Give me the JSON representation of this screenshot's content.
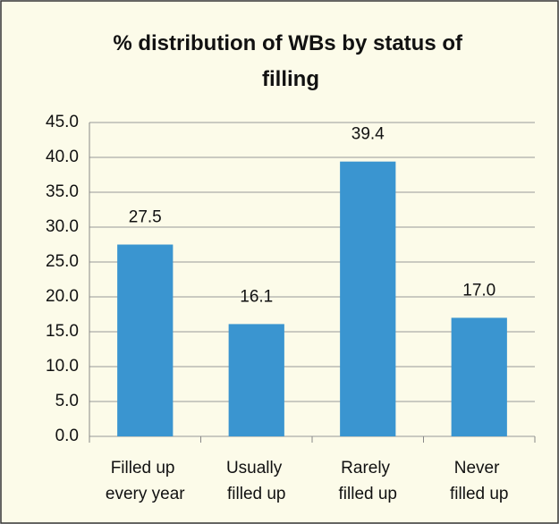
{
  "chart_data": {
    "type": "bar",
    "title": "% distribution of WBs by status of filling",
    "categories": [
      "Filled up every year",
      "Usually filled up",
      "Rarely filled up",
      "Never filled up"
    ],
    "values": [
      27.5,
      16.1,
      39.4,
      17.0
    ],
    "value_labels": [
      "27.5",
      "16.1",
      "39.4",
      "17.0"
    ],
    "color": "#3a95d0",
    "ylim": [
      0,
      45
    ],
    "yticks": [
      {
        "value": 0,
        "label": "0.0"
      },
      {
        "value": 5,
        "label": "5.0"
      },
      {
        "value": 10,
        "label": "10.0"
      },
      {
        "value": 15,
        "label": "15.0"
      },
      {
        "value": 20,
        "label": "20.0"
      },
      {
        "value": 25,
        "label": "25.0"
      },
      {
        "value": 30,
        "label": "30.0"
      },
      {
        "value": 35,
        "label": "35.0"
      },
      {
        "value": 40,
        "label": "40.0"
      },
      {
        "value": 45,
        "label": "45.0"
      }
    ],
    "grid": true
  }
}
